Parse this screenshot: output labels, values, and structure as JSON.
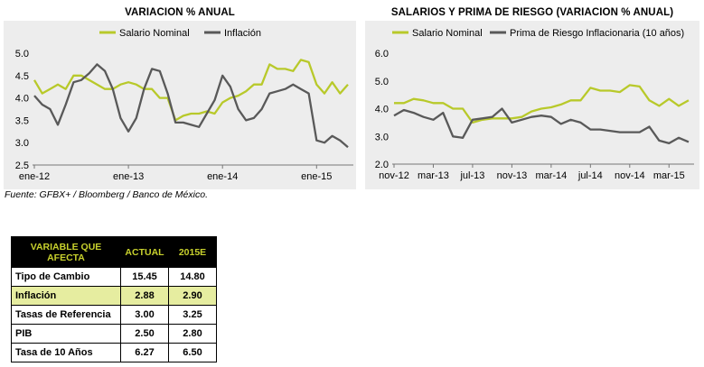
{
  "colors": {
    "salario": "#b8c92a",
    "otra": "#595959",
    "panel": "#ededed",
    "highlight": "#e6eda0",
    "header_text": "#c8d12d"
  },
  "chart_data": [
    {
      "type": "line",
      "title": "VARIACION % ANUAL",
      "ylim": [
        2.5,
        5.0
      ],
      "yticks": [
        "2.5",
        "3.0",
        "3.5",
        "4.0",
        "4.5",
        "5.0"
      ],
      "xticks": [
        {
          "label": "ene-12",
          "index": 0
        },
        {
          "label": "ene-13",
          "index": 12
        },
        {
          "label": "ene-14",
          "index": 24
        },
        {
          "label": "ene-15",
          "index": 36
        }
      ],
      "series": [
        {
          "name": "Salario Nominal",
          "color": "#b8c92a",
          "values": [
            4.4,
            4.1,
            4.2,
            4.3,
            4.2,
            4.5,
            4.5,
            4.4,
            4.3,
            4.2,
            4.2,
            4.3,
            4.35,
            4.3,
            4.2,
            4.2,
            4.0,
            4.0,
            3.5,
            3.6,
            3.65,
            3.65,
            3.7,
            3.65,
            3.9,
            4.0,
            4.05,
            4.15,
            4.3,
            4.3,
            4.75,
            4.65,
            4.65,
            4.6,
            4.85,
            4.8,
            4.3,
            4.1,
            4.35,
            4.1,
            4.3
          ]
        },
        {
          "name": "Inflación",
          "color": "#595959",
          "values": [
            4.05,
            3.85,
            3.75,
            3.4,
            3.85,
            4.35,
            4.4,
            4.55,
            4.75,
            4.6,
            4.2,
            3.55,
            3.25,
            3.55,
            4.2,
            4.65,
            4.6,
            4.1,
            3.45,
            3.45,
            3.4,
            3.35,
            3.65,
            3.95,
            4.5,
            4.25,
            3.75,
            3.5,
            3.55,
            3.75,
            4.1,
            4.15,
            4.2,
            4.3,
            4.2,
            4.1,
            3.05,
            3.0,
            3.15,
            3.05,
            2.9
          ]
        }
      ]
    },
    {
      "type": "line",
      "title": "SALARIOS Y PRIMA DE RIESGO (VARIACION % ANUAL)",
      "ylim": [
        2.0,
        6.0
      ],
      "yticks": [
        "2.0",
        "3.0",
        "4.0",
        "5.0",
        "6.0"
      ],
      "xticks": [
        {
          "label": "nov-12",
          "index": 0
        },
        {
          "label": "mar-13",
          "index": 4
        },
        {
          "label": "jul-13",
          "index": 8
        },
        {
          "label": "nov-13",
          "index": 12
        },
        {
          "label": "mar-14",
          "index": 16
        },
        {
          "label": "jul-14",
          "index": 20
        },
        {
          "label": "nov-14",
          "index": 24
        },
        {
          "label": "mar-15",
          "index": 28
        }
      ],
      "series": [
        {
          "name": "Salario Nominal",
          "color": "#b8c92a",
          "values": [
            4.2,
            4.2,
            4.35,
            4.3,
            4.2,
            4.2,
            4.0,
            4.0,
            3.5,
            3.6,
            3.65,
            3.65,
            3.65,
            3.7,
            3.9,
            4.0,
            4.05,
            4.15,
            4.3,
            4.3,
            4.75,
            4.65,
            4.65,
            4.6,
            4.85,
            4.8,
            4.3,
            4.1,
            4.35,
            4.1,
            4.3
          ]
        },
        {
          "name": "Prima de Riesgo Inflacionaria (10 años)",
          "color": "#595959",
          "values": [
            3.75,
            3.95,
            3.85,
            3.7,
            3.6,
            3.85,
            3.0,
            2.95,
            3.6,
            3.65,
            3.7,
            4.0,
            3.5,
            3.6,
            3.7,
            3.75,
            3.7,
            3.45,
            3.6,
            3.5,
            3.25,
            3.25,
            3.2,
            3.15,
            3.15,
            3.15,
            3.35,
            2.85,
            2.75,
            2.95,
            2.8
          ]
        }
      ]
    }
  ],
  "source_text": "Fuente: GFBX+ / Bloomberg / Banco de México.",
  "table": {
    "headers": [
      "VARIABLE QUE AFECTA",
      "ACTUAL",
      "2015E"
    ],
    "rows": [
      {
        "name": "Tipo de Cambio",
        "actual": "15.45",
        "e2015": "14.80",
        "highlight": false
      },
      {
        "name": "Inflación",
        "actual": "2.88",
        "e2015": "2.90",
        "highlight": true
      },
      {
        "name": "Tasas de Referencia",
        "actual": "3.00",
        "e2015": "3.25",
        "highlight": false
      },
      {
        "name": "PIB",
        "actual": "2.50",
        "e2015": "2.80",
        "highlight": false
      },
      {
        "name": "Tasa de 10 Años",
        "actual": "6.27",
        "e2015": "6.50",
        "highlight": false
      }
    ]
  }
}
